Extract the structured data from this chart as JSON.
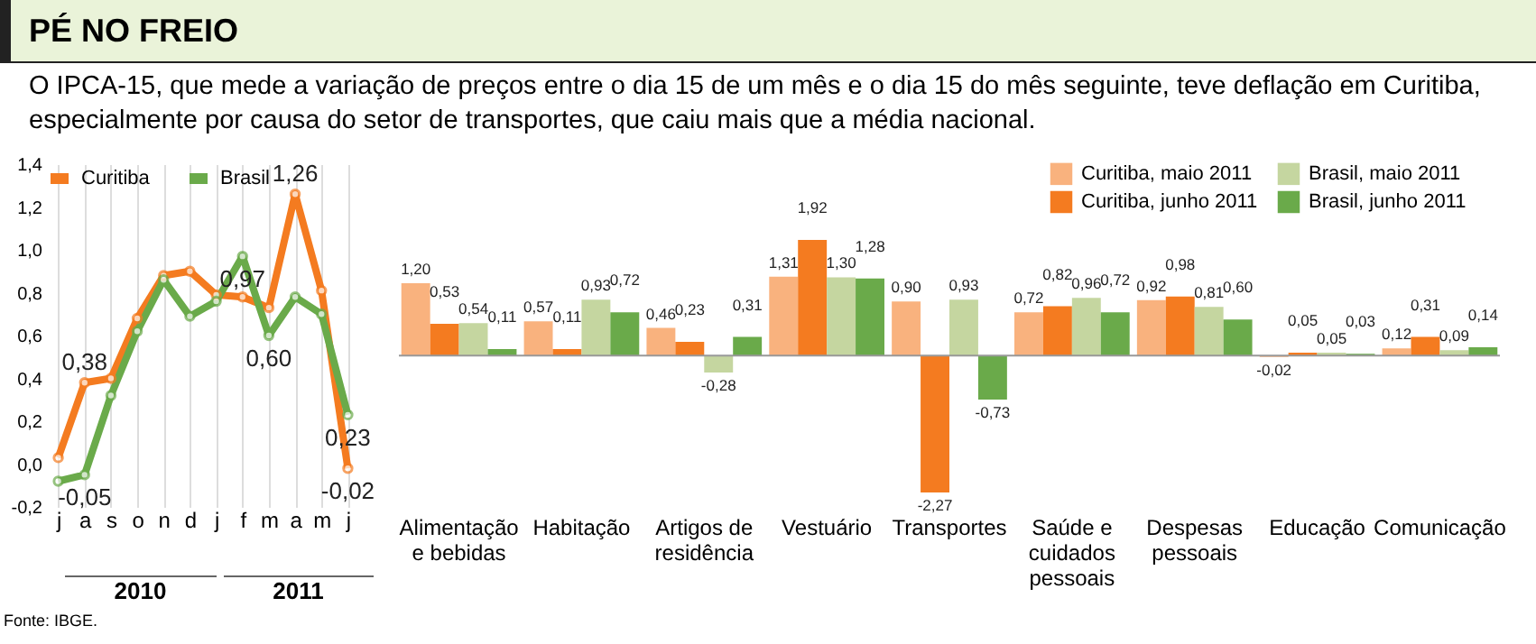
{
  "chart_data": [
    {
      "type": "line",
      "title": "PÉ NO FREIO",
      "subtitle": "O IPCA-15, que mede a variação de preços entre o dia 15 de um mês e o dia 15 do mês seguinte, teve deflação em Curitiba, especialmente por causa do setor de transportes, que caiu mais que a média nacional.",
      "categories": [
        "j",
        "a",
        "s",
        "o",
        "n",
        "d",
        "j",
        "f",
        "m",
        "a",
        "m",
        "j"
      ],
      "series": [
        {
          "name": "Curitiba",
          "color": "#f47b20",
          "values": [
            0.03,
            0.38,
            0.4,
            0.68,
            0.88,
            0.9,
            0.79,
            0.78,
            0.73,
            1.26,
            0.81,
            -0.02
          ],
          "value_labels": [
            null,
            "0,38",
            null,
            null,
            null,
            null,
            null,
            null,
            null,
            "1,26",
            null,
            "-0,02"
          ]
        },
        {
          "name": "Brasil",
          "color": "#6aaa4a",
          "values": [
            -0.08,
            -0.05,
            0.32,
            0.62,
            0.86,
            0.69,
            0.76,
            0.97,
            0.6,
            0.78,
            0.7,
            0.23
          ],
          "value_labels": [
            null,
            "-0,05",
            null,
            null,
            null,
            null,
            null,
            "0,97",
            "0,60",
            null,
            null,
            "0,23"
          ]
        }
      ],
      "ylim": [
        -0.2,
        1.4
      ],
      "yticks": [
        {
          "value": -0.2,
          "label": "-0,2"
        },
        {
          "value": 0,
          "label": "0,0"
        },
        {
          "value": 0.2,
          "label": "0,2"
        },
        {
          "value": 0.4,
          "label": "0,4"
        },
        {
          "value": 0.6,
          "label": "0,6"
        },
        {
          "value": 0.8,
          "label": "0,8"
        },
        {
          "value": 1.0,
          "label": "1,0"
        },
        {
          "value": 1.2,
          "label": "1,2"
        },
        {
          "value": 1.4,
          "label": "1,4"
        }
      ],
      "grid": "x",
      "legend": "top left",
      "marker": "circle",
      "annotations": [
        "2010",
        "2011",
        "Fonte: IBGE."
      ]
    },
    {
      "type": "bar",
      "categories": [
        "Alimentação e bebidas",
        "Habitação",
        "Artigos de residência",
        "Vestuário",
        "Transportes",
        "Saúde e cuidados pessoais",
        "Despesas pessoais",
        "Educação",
        "Comunicação"
      ],
      "series": [
        {
          "name": "Curitiba, maio 2011",
          "color": "#f9b27e",
          "values": [
            1.2,
            0.57,
            0.46,
            1.31,
            0.9,
            0.72,
            0.92,
            -0.02,
            0.12
          ],
          "value_labels": [
            "1,20",
            "0,57",
            "0,46",
            "1,31",
            "0,90",
            "0,72",
            "0,92",
            "-0,02",
            "0,12"
          ]
        },
        {
          "name": "Curitiba, junho 2011",
          "color": "#f47b20",
          "values": [
            0.53,
            0.11,
            0.23,
            1.92,
            -2.27,
            0.82,
            0.98,
            0.05,
            0.31
          ],
          "value_labels": [
            "0,53",
            "0,11",
            "0,23",
            "1,92",
            "-2,27",
            "0,82",
            "0,98",
            "0,05",
            "0,31"
          ]
        },
        {
          "name": "Brasil, maio 2011",
          "color": "#c5d6a0",
          "values": [
            0.54,
            0.93,
            -0.28,
            1.3,
            0.93,
            0.96,
            0.81,
            0.05,
            0.09
          ],
          "value_labels": [
            "0,54",
            "0,93",
            "-0,28",
            "1,30",
            "0,93",
            "0,96",
            "0,81",
            "0,05",
            "0,09"
          ]
        },
        {
          "name": "Brasil, junho 2011",
          "color": "#6aaa4a",
          "values": [
            0.11,
            0.72,
            0.31,
            1.28,
            -0.73,
            0.72,
            0.6,
            0.03,
            0.14
          ],
          "value_labels": [
            "0,11",
            "0,72",
            "0,31",
            "1,28",
            "-0,73",
            "0,72",
            "0,60",
            "0,03",
            "0,14"
          ]
        }
      ],
      "legend": "top right"
    }
  ]
}
